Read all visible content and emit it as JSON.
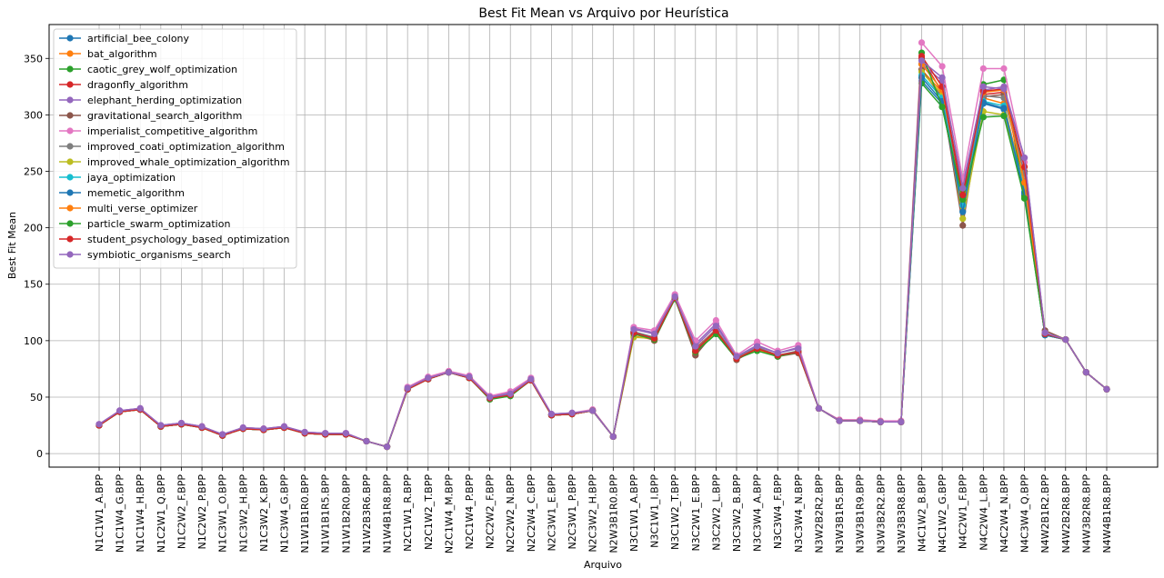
{
  "chart_data": {
    "type": "line",
    "title": "Best Fit Mean vs Arquivo por Heurística",
    "xlabel": "Arquivo",
    "ylabel": "Best Fit Mean",
    "ylim": [
      -12,
      380
    ],
    "yticks": [
      0,
      50,
      100,
      150,
      200,
      250,
      300,
      350
    ],
    "grid": true,
    "legend_position": "top-left",
    "categories": [
      "N1C1W1_A.BPP",
      "N1C1W4_G.BPP",
      "N1C1W4_H.BPP",
      "N1C2W1_Q.BPP",
      "N1C2W2_F.BPP",
      "N1C2W2_P.BPP",
      "N1C3W1_O.BPP",
      "N1C3W2_H.BPP",
      "N1C3W2_K.BPP",
      "N1C3W4_G.BPP",
      "N1W1B1R0.BPP",
      "N1W1B1R5.BPP",
      "N1W1B2R0.BPP",
      "N1W2B3R6.BPP",
      "N1W4B1R8.BPP",
      "N2C1W1_R.BPP",
      "N2C1W2_T.BPP",
      "N2C1W4_M.BPP",
      "N2C1W4_P.BPP",
      "N2C2W2_F.BPP",
      "N2C2W2_N.BPP",
      "N2C2W4_C.BPP",
      "N2C3W1_E.BPP",
      "N2C3W1_P.BPP",
      "N2C3W2_H.BPP",
      "N2W3B1R0.BPP",
      "N3C1W1_A.BPP",
      "N3C1W1_I.BPP",
      "N3C1W2_T.BPP",
      "N3C2W1_E.BPP",
      "N3C2W2_L.BPP",
      "N3C3W2_B.BPP",
      "N3C3W4_A.BPP",
      "N3C3W4_F.BPP",
      "N3C3W4_N.BPP",
      "N3W2B2R2.BPP",
      "N3W3B1R5.BPP",
      "N3W3B1R9.BPP",
      "N3W3B2R2.BPP",
      "N3W3B3R8.BPP",
      "N4C1W2_B.BPP",
      "N4C1W2_G.BPP",
      "N4C2W1_F.BPP",
      "N4C2W4_L.BPP",
      "N4C2W4_N.BPP",
      "N4C3W4_Q.BPP",
      "N4W2B1R2.BPP",
      "N4W2B2R8.BPP",
      "N4W3B2R8.BPP",
      "N4W4B1R8.BPP"
    ],
    "series": [
      {
        "name": "artificial_bee_colony",
        "color": "#1f77b4",
        "values": [
          25,
          37,
          39,
          24,
          26,
          23,
          16,
          22,
          21,
          23,
          18,
          17,
          17,
          11,
          6,
          57,
          66,
          72,
          67,
          49,
          52,
          65,
          34,
          35,
          38,
          15,
          108,
          102,
          138,
          90,
          108,
          84,
          92,
          86,
          91,
          40,
          29,
          29,
          28,
          28,
          330,
          310,
          215,
          310,
          305,
          230,
          105,
          101,
          72,
          57
        ]
      },
      {
        "name": "bat_algorithm",
        "color": "#ff7f0e",
        "values": [
          25,
          37,
          39,
          24,
          26,
          24,
          16,
          22,
          22,
          23,
          18,
          17,
          17,
          11,
          6,
          57,
          66,
          72,
          67,
          49,
          53,
          65,
          34,
          35,
          38,
          15,
          104,
          101,
          138,
          88,
          108,
          84,
          93,
          87,
          90,
          40,
          29,
          29,
          28,
          28,
          340,
          320,
          225,
          315,
          310,
          235,
          106,
          101,
          72,
          57
        ]
      },
      {
        "name": "caotic_grey_wolf_optimization",
        "color": "#2ca02c",
        "values": [
          25,
          37,
          39,
          24,
          26,
          23,
          16,
          22,
          21,
          23,
          18,
          17,
          17,
          11,
          6,
          57,
          66,
          72,
          67,
          48,
          51,
          65,
          34,
          35,
          38,
          15,
          106,
          101,
          137,
          90,
          106,
          84,
          92,
          86,
          90,
          40,
          29,
          29,
          28,
          28,
          328,
          307,
          222,
          327,
          331,
          228,
          105,
          101,
          72,
          57
        ]
      },
      {
        "name": "dragonfly_algorithm",
        "color": "#d62728",
        "values": [
          25,
          37,
          39,
          24,
          26,
          23,
          16,
          22,
          21,
          23,
          18,
          17,
          17,
          11,
          6,
          57,
          66,
          72,
          67,
          49,
          52,
          65,
          34,
          35,
          38,
          15,
          108,
          101,
          138,
          93,
          110,
          85,
          94,
          87,
          90,
          40,
          29,
          29,
          28,
          28,
          350,
          320,
          228,
          318,
          320,
          240,
          106,
          101,
          72,
          57
        ]
      },
      {
        "name": "elephant_herding_optimization",
        "color": "#9467bd",
        "values": [
          26,
          38,
          40,
          25,
          27,
          24,
          17,
          23,
          22,
          24,
          19,
          18,
          18,
          11,
          6,
          58,
          67,
          72,
          68,
          50,
          54,
          66,
          35,
          36,
          38,
          15,
          111,
          107,
          140,
          97,
          115,
          86,
          96,
          89,
          94,
          40,
          29,
          29,
          28,
          28,
          345,
          330,
          238,
          322,
          325,
          262,
          107,
          101,
          72,
          57
        ]
      },
      {
        "name": "gravitational_search_algorithm",
        "color": "#8c564b",
        "values": [
          25,
          37,
          39,
          24,
          26,
          23,
          16,
          22,
          21,
          23,
          18,
          17,
          17,
          11,
          6,
          57,
          66,
          72,
          67,
          49,
          52,
          65,
          34,
          35,
          38,
          15,
          107,
          100,
          138,
          87,
          109,
          83,
          93,
          86,
          89,
          40,
          29,
          29,
          28,
          28,
          340,
          315,
          202,
          316,
          318,
          250,
          109,
          101,
          72,
          57
        ]
      },
      {
        "name": "imperialist_competitive_algorithm",
        "color": "#e377c2",
        "values": [
          26,
          38,
          40,
          25,
          27,
          24,
          17,
          23,
          22,
          24,
          19,
          18,
          18,
          11,
          6,
          59,
          68,
          73,
          69,
          51,
          55,
          67,
          35,
          36,
          39,
          15,
          112,
          109,
          141,
          100,
          118,
          87,
          99,
          91,
          96,
          40,
          30,
          30,
          29,
          29,
          364,
          343,
          243,
          341,
          341,
          258,
          107,
          101,
          72,
          57
        ]
      },
      {
        "name": "improved_coati_optimization_algorithm",
        "color": "#7f7f7f",
        "values": [
          25,
          37,
          39,
          24,
          26,
          23,
          16,
          22,
          21,
          23,
          18,
          17,
          17,
          11,
          6,
          57,
          66,
          72,
          67,
          49,
          52,
          65,
          34,
          35,
          38,
          15,
          108,
          103,
          138,
          92,
          110,
          85,
          94,
          87,
          91,
          40,
          29,
          29,
          28,
          28,
          345,
          322,
          230,
          317,
          315,
          248,
          106,
          101,
          72,
          57
        ]
      },
      {
        "name": "improved_whale_optimization_algorithm",
        "color": "#bcbd22",
        "values": [
          25,
          37,
          39,
          24,
          26,
          23,
          16,
          22,
          21,
          23,
          18,
          17,
          17,
          11,
          6,
          57,
          66,
          72,
          67,
          49,
          52,
          65,
          34,
          35,
          38,
          15,
          103,
          102,
          138,
          91,
          109,
          84,
          93,
          86,
          90,
          40,
          29,
          29,
          28,
          28,
          338,
          318,
          208,
          303,
          300,
          236,
          106,
          101,
          72,
          57
        ]
      },
      {
        "name": "jaya_optimization",
        "color": "#17becf",
        "values": [
          25,
          37,
          39,
          24,
          26,
          23,
          16,
          22,
          21,
          23,
          18,
          17,
          17,
          11,
          6,
          57,
          66,
          72,
          67,
          49,
          52,
          65,
          34,
          35,
          38,
          15,
          107,
          102,
          138,
          90,
          108,
          84,
          92,
          86,
          90,
          40,
          29,
          29,
          28,
          28,
          335,
          315,
          220,
          312,
          308,
          232,
          105,
          101,
          72,
          57
        ]
      },
      {
        "name": "memetic_algorithm",
        "color": "#1f77b4",
        "values": [
          25,
          37,
          39,
          24,
          26,
          23,
          16,
          22,
          21,
          23,
          18,
          17,
          17,
          11,
          6,
          57,
          66,
          72,
          67,
          49,
          52,
          65,
          34,
          35,
          38,
          15,
          107,
          102,
          138,
          90,
          108,
          84,
          92,
          86,
          90,
          40,
          29,
          29,
          28,
          28,
          333,
          312,
          214,
          311,
          306,
          231,
          105,
          101,
          72,
          57
        ]
      },
      {
        "name": "multi_verse_optimizer",
        "color": "#ff7f0e",
        "values": [
          25,
          37,
          39,
          24,
          26,
          23,
          16,
          22,
          21,
          23,
          18,
          17,
          17,
          11,
          6,
          57,
          66,
          72,
          67,
          49,
          52,
          65,
          34,
          35,
          38,
          15,
          106,
          101,
          138,
          90,
          108,
          84,
          92,
          86,
          90,
          40,
          29,
          29,
          28,
          28,
          345,
          322,
          232,
          320,
          322,
          240,
          106,
          101,
          72,
          57
        ]
      },
      {
        "name": "particle_swarm_optimization",
        "color": "#2ca02c",
        "values": [
          25,
          37,
          39,
          24,
          26,
          23,
          16,
          22,
          21,
          23,
          18,
          17,
          17,
          11,
          6,
          57,
          66,
          72,
          67,
          49,
          51,
          65,
          34,
          35,
          38,
          15,
          106,
          101,
          137,
          90,
          106,
          84,
          91,
          86,
          90,
          40,
          29,
          29,
          28,
          28,
          355,
          307,
          225,
          298,
          299,
          226,
          106,
          101,
          72,
          57
        ]
      },
      {
        "name": "student_psychology_based_optimization",
        "color": "#d62728",
        "values": [
          25,
          37,
          39,
          24,
          26,
          23,
          16,
          22,
          21,
          23,
          18,
          17,
          17,
          11,
          6,
          57,
          66,
          72,
          67,
          49,
          52,
          65,
          34,
          35,
          38,
          15,
          107,
          102,
          138,
          91,
          109,
          84,
          93,
          87,
          90,
          40,
          29,
          29,
          28,
          28,
          352,
          325,
          229,
          321,
          323,
          254,
          106,
          101,
          72,
          57
        ]
      },
      {
        "name": "symbiotic_organisms_search",
        "color": "#9467bd",
        "values": [
          26,
          38,
          40,
          25,
          27,
          24,
          17,
          23,
          22,
          24,
          19,
          18,
          18,
          11,
          6,
          58,
          67,
          72,
          68,
          50,
          53,
          66,
          35,
          36,
          38,
          15,
          110,
          106,
          139,
          95,
          113,
          86,
          95,
          89,
          93,
          40,
          29,
          29,
          28,
          28,
          348,
          333,
          235,
          325,
          323,
          262,
          107,
          101,
          72,
          57
        ]
      }
    ]
  }
}
